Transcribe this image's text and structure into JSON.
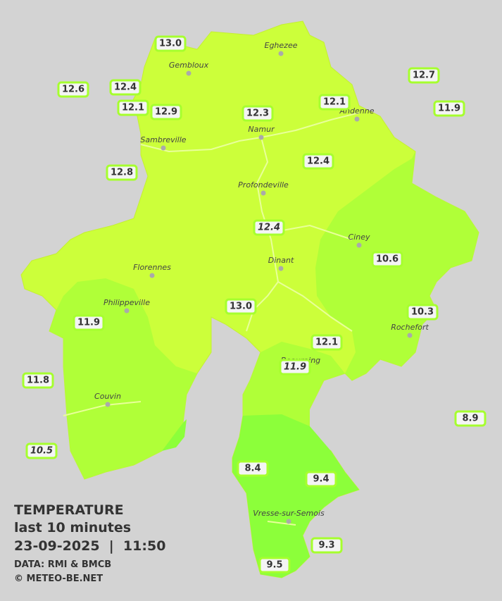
{
  "title": "TEMPERATURE",
  "subtitle": "last 10 minutes",
  "timestamp": "23-09-2025  |  11:50",
  "source": "DATA: RMI & BMCB",
  "copyright": "© METEO-BE.NET",
  "towns": [
    "Eghezee",
    "Gembloux",
    "Andenne",
    "Namur",
    "Sambreville",
    "Profondeville",
    "Ciney",
    "Dinant",
    "Florennes",
    "Philippeville",
    "Rochefort",
    "Beauraing",
    "Couvin",
    "Vresse-sur-Semois"
  ],
  "readings": [
    "13.0",
    "12.6",
    "12.4",
    "12.1",
    "12.9",
    "12.3",
    "12.1",
    "12.7",
    "11.9",
    "12.8",
    "12.4",
    "12.4",
    "10.6",
    "13.0",
    "10.3",
    "11.9",
    "12.1",
    "11.9",
    "11.8",
    "8.9",
    "10.5",
    "8.4",
    "9.4",
    "9.3",
    "9.5"
  ]
}
